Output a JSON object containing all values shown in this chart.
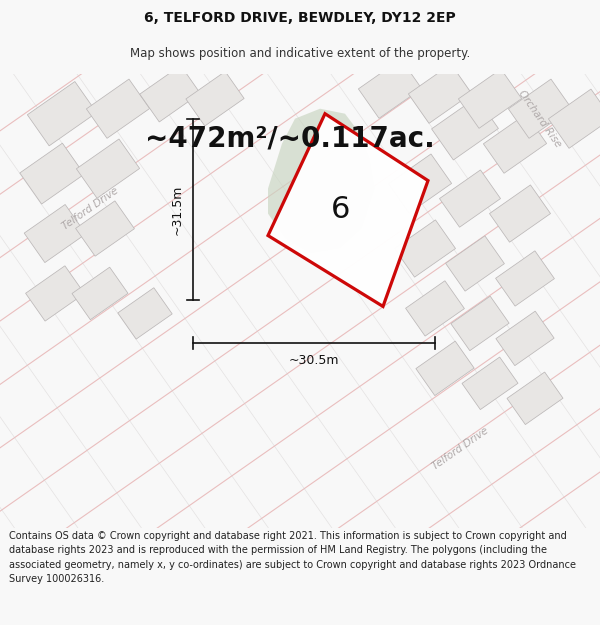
{
  "title": "6, TELFORD DRIVE, BEWDLEY, DY12 2EP",
  "subtitle": "Map shows position and indicative extent of the property.",
  "area_text": "~472m²/~0.117ac.",
  "number_label": "6",
  "dim_vertical": "~31.5m",
  "dim_horizontal": "~30.5m",
  "footer": "Contains OS data © Crown copyright and database right 2021. This information is subject to Crown copyright and database rights 2023 and is reproduced with the permission of HM Land Registry. The polygons (including the associated geometry, namely x, y co-ordinates) are subject to Crown copyright and database rights 2023 Ordnance Survey 100026316.",
  "map_bg": "#f2efef",
  "plot_fill": "#ffffff",
  "plot_edge": "#cc0000",
  "green_fill": "#c8d4c0",
  "road_pink": "#e8b8b8",
  "road_gray": "#d0cccc",
  "building_face": "#e8e6e4",
  "building_edge": "#bcb8b8",
  "label_color": "#b0aaaa",
  "dim_color": "#111111",
  "title_fontsize": 10,
  "subtitle_fontsize": 8.5,
  "area_fontsize": 20,
  "number_fontsize": 22,
  "dim_fontsize": 9,
  "footer_fontsize": 7,
  "road_label_fontsize": 7.5
}
